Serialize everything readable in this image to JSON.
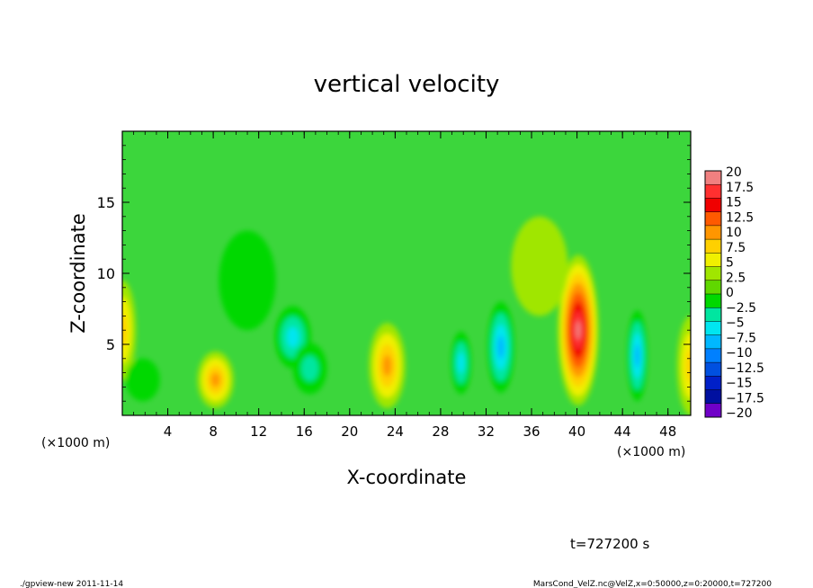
{
  "chart_data": {
    "type": "heatmap",
    "title": "vertical velocity",
    "xlabel": "X-coordinate",
    "ylabel": "Z-coordinate",
    "x_unit_note": "(×1000 m)",
    "x_unit_note_right": "(×1000 m)",
    "x_range": [
      0,
      50000
    ],
    "z_range": [
      0,
      20000
    ],
    "x_ticks": [
      "4",
      "8",
      "12",
      "16",
      "20",
      "24",
      "28",
      "32",
      "36",
      "40",
      "44",
      "48"
    ],
    "y_ticks": [
      "5",
      "10",
      "15"
    ],
    "colorbar": {
      "labels": [
        "20",
        "17.5",
        "15",
        "12.5",
        "10",
        "7.5",
        "5",
        "2.5",
        "0",
        "−2.5",
        "−5",
        "−7.5",
        "−10",
        "−12.5",
        "−15",
        "−17.5",
        "−20"
      ],
      "colors": [
        "#f08080",
        "#ff3030",
        "#f00000",
        "#ff5a00",
        "#ff9600",
        "#ffd000",
        "#f0f000",
        "#a0e600",
        "#60d800",
        "#00d800",
        "#00e6a0",
        "#00e6f0",
        "#00b8ff",
        "#0080ff",
        "#0050e0",
        "#0020c8",
        "#0010a0",
        "#7000c8"
      ]
    },
    "features": [
      {
        "x": 0,
        "z": 6000,
        "value": 7.5,
        "rx": 1200,
        "rz": 3500
      },
      {
        "x": 1800,
        "z": 2500,
        "value": -4,
        "rx": 1500,
        "rz": 1500
      },
      {
        "x": 8200,
        "z": 2500,
        "value": 10,
        "rx": 1600,
        "rz": 2000
      },
      {
        "x": 15000,
        "z": 5500,
        "value": -8,
        "rx": 1600,
        "rz": 2200
      },
      {
        "x": 16500,
        "z": 3300,
        "value": -7,
        "rx": 1500,
        "rz": 1800
      },
      {
        "x": 23300,
        "z": 3500,
        "value": 10,
        "rx": 1600,
        "rz": 3000
      },
      {
        "x": 29800,
        "z": 3700,
        "value": -8,
        "rx": 900,
        "rz": 2200
      },
      {
        "x": 33300,
        "z": 4800,
        "value": -11.5,
        "rx": 1200,
        "rz": 3200
      },
      {
        "x": 40100,
        "z": 6000,
        "value": 20,
        "rx": 1800,
        "rz": 5300
      },
      {
        "x": 45300,
        "z": 4200,
        "value": -10,
        "rx": 900,
        "rz": 3200
      },
      {
        "x": 50000,
        "z": 3500,
        "value": 8,
        "rx": 1200,
        "rz": 3500
      },
      {
        "x": 36700,
        "z": 10500,
        "value": 3,
        "rx": 2500,
        "rz": 3500
      },
      {
        "x": 11000,
        "z": 9500,
        "value": -3,
        "rx": 2500,
        "rz": 3500
      }
    ],
    "grid": false,
    "colorbar_placement": "right"
  },
  "time_label": "t=727200 s",
  "footer_left": "./gpview-new  2011-11-14",
  "footer_right": "MarsCond_VelZ.nc@VelZ,x=0:50000,z=0:20000,t=727200"
}
